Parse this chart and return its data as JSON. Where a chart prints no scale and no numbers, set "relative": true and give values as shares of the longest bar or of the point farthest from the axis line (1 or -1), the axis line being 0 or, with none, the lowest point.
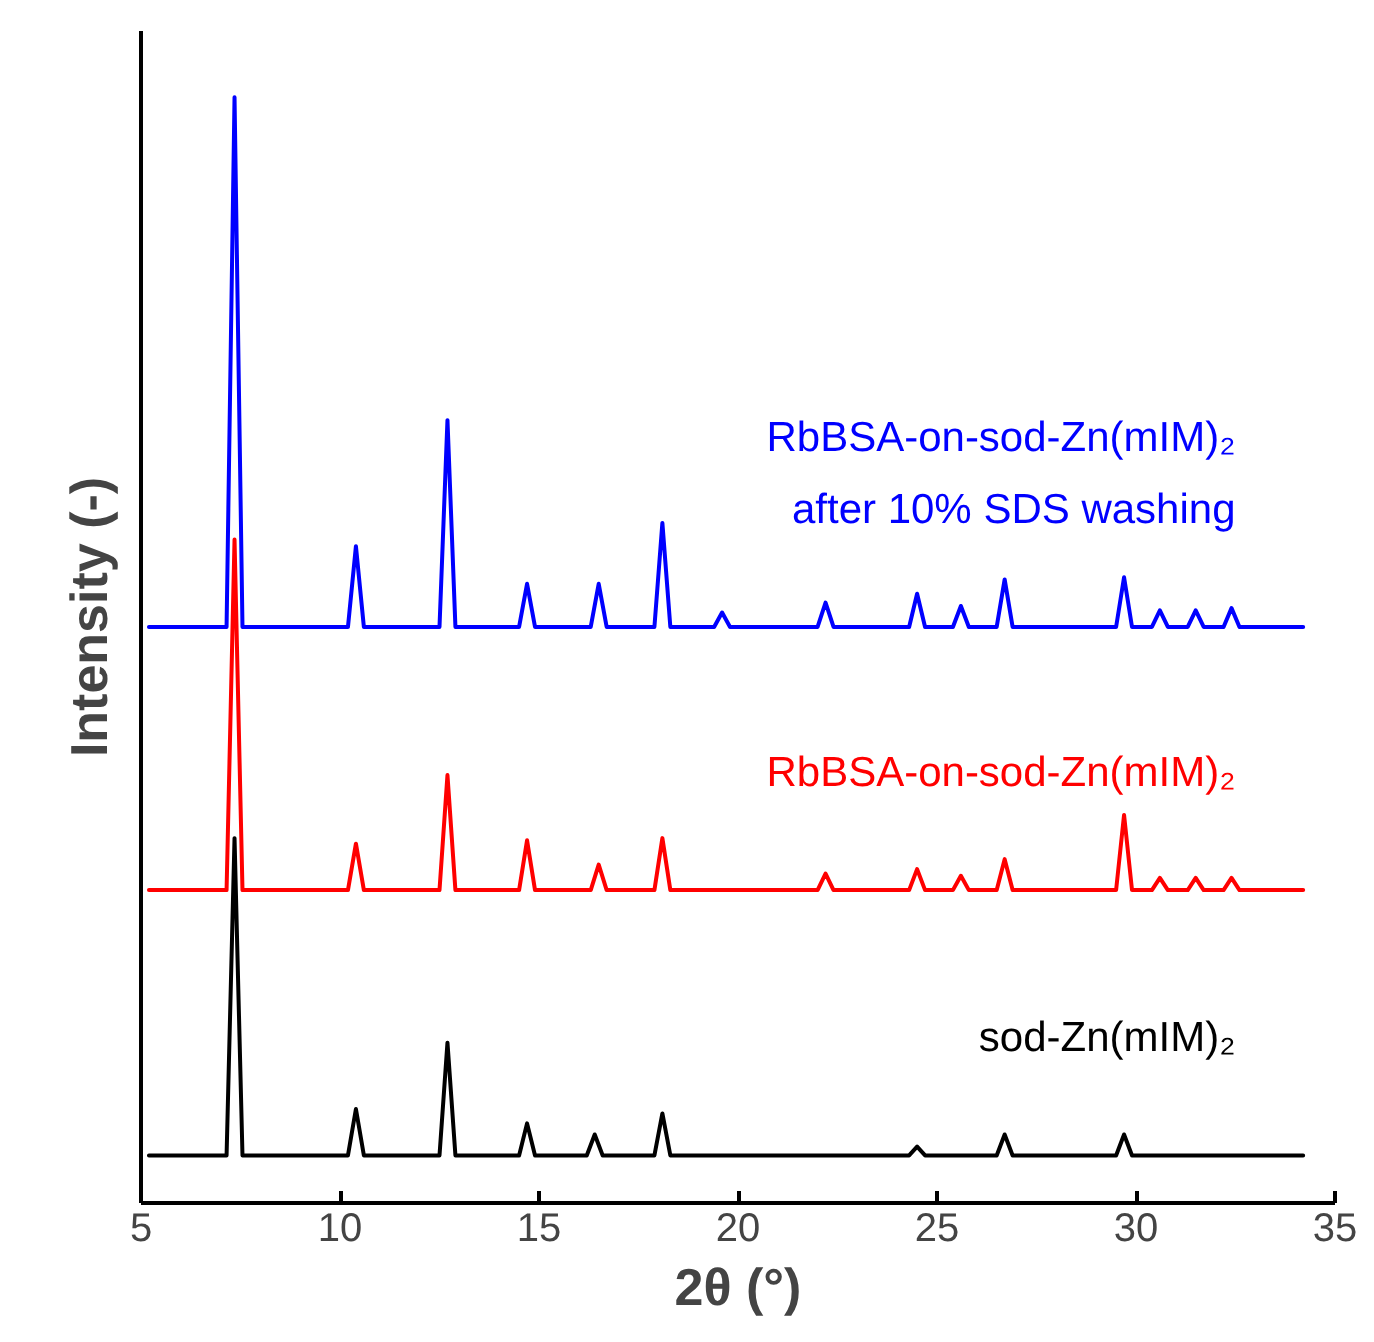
{
  "chart_data": {
    "type": "line",
    "relative": true,
    "xlabel": "2θ (°)",
    "ylabel": "Intensity (-)",
    "xlim": [
      5,
      35
    ],
    "xticks": [
      5,
      10,
      15,
      20,
      25,
      30,
      35
    ],
    "grid": false,
    "marker": "none",
    "line_style": "solid",
    "series": [
      {
        "name": "sod-Zn(mIM)₂",
        "color": "#000000",
        "x": [
          5.2,
          7.15,
          7.35,
          7.55,
          10.2,
          10.4,
          10.6,
          12.5,
          12.7,
          12.9,
          14.5,
          14.7,
          14.9,
          16.2,
          16.4,
          16.6,
          17.9,
          18.1,
          18.3,
          24.3,
          24.5,
          24.7,
          26.5,
          26.7,
          26.9,
          29.5,
          29.7,
          29.9,
          34.2
        ],
        "values": [
          0.043,
          0.043,
          0.33,
          0.043,
          0.043,
          0.085,
          0.043,
          0.043,
          0.145,
          0.043,
          0.043,
          0.072,
          0.043,
          0.043,
          0.062,
          0.043,
          0.043,
          0.081,
          0.043,
          0.043,
          0.051,
          0.043,
          0.043,
          0.062,
          0.043,
          0.043,
          0.062,
          0.043,
          0.043
        ]
      },
      {
        "name": "RbBSA-on-sod-Zn(mIM)₂",
        "color": "#ff0000",
        "x": [
          5.2,
          7.15,
          7.35,
          7.55,
          10.2,
          10.4,
          10.6,
          12.5,
          12.7,
          12.9,
          14.5,
          14.7,
          14.9,
          16.3,
          16.5,
          16.7,
          17.9,
          18.1,
          18.3,
          22.0,
          22.2,
          22.4,
          24.3,
          24.5,
          24.7,
          25.4,
          25.6,
          25.8,
          26.5,
          26.7,
          26.9,
          29.5,
          29.7,
          29.9,
          30.4,
          30.6,
          30.8,
          31.3,
          31.5,
          31.7,
          32.2,
          32.4,
          32.6,
          34.2
        ],
        "values": [
          0.283,
          0.283,
          0.6,
          0.283,
          0.283,
          0.325,
          0.283,
          0.283,
          0.387,
          0.283,
          0.283,
          0.328,
          0.283,
          0.283,
          0.306,
          0.283,
          0.283,
          0.33,
          0.283,
          0.283,
          0.298,
          0.283,
          0.283,
          0.302,
          0.283,
          0.283,
          0.296,
          0.283,
          0.283,
          0.311,
          0.283,
          0.283,
          0.351,
          0.283,
          0.283,
          0.294,
          0.283,
          0.283,
          0.294,
          0.283,
          0.283,
          0.294,
          0.283,
          0.283
        ]
      },
      {
        "name": "RbBSA-on-sod-Zn(mIM)₂\nafter 10% SDS washing",
        "color": "#0000ff",
        "x": [
          5.2,
          7.15,
          7.35,
          7.55,
          10.2,
          10.4,
          10.6,
          12.5,
          12.7,
          12.9,
          14.5,
          14.7,
          14.9,
          16.3,
          16.5,
          16.7,
          17.9,
          18.1,
          18.3,
          19.4,
          19.6,
          19.8,
          22.0,
          22.2,
          22.4,
          24.3,
          24.5,
          24.7,
          25.4,
          25.6,
          25.8,
          26.5,
          26.7,
          26.9,
          29.5,
          29.7,
          29.9,
          30.4,
          30.6,
          30.8,
          31.3,
          31.5,
          31.7,
          32.2,
          32.4,
          32.6,
          34.2
        ],
        "values": [
          0.521,
          0.521,
          1.0,
          0.521,
          0.521,
          0.594,
          0.521,
          0.521,
          0.708,
          0.521,
          0.521,
          0.56,
          0.521,
          0.521,
          0.56,
          0.521,
          0.521,
          0.615,
          0.521,
          0.521,
          0.534,
          0.521,
          0.521,
          0.543,
          0.521,
          0.521,
          0.551,
          0.521,
          0.521,
          0.54,
          0.521,
          0.521,
          0.564,
          0.521,
          0.521,
          0.566,
          0.521,
          0.521,
          0.536,
          0.521,
          0.521,
          0.536,
          0.521,
          0.521,
          0.538,
          0.521,
          0.521
        ]
      }
    ]
  }
}
